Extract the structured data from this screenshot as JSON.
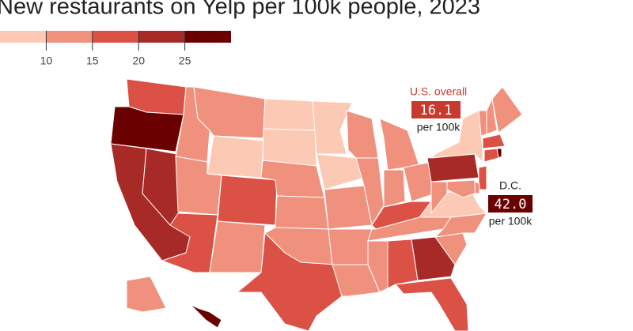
{
  "map": {
    "type": "choropleth",
    "title": "New restaurants on Yelp per 100k people, 2023",
    "legend": {
      "ticks": [
        10,
        15,
        20,
        25
      ],
      "colors": [
        "#fcc9b5",
        "#f0917e",
        "#dc5146",
        "#a82a27",
        "#6b0000"
      ]
    },
    "values": [
      17,
      27,
      22,
      22,
      13,
      13,
      8,
      13,
      17,
      17,
      13,
      8,
      8,
      13,
      13,
      13,
      17,
      8,
      8,
      13,
      13,
      13,
      13,
      13,
      13,
      13,
      13,
      17,
      13,
      13,
      17,
      22,
      17,
      13,
      13,
      8,
      13,
      22,
      8,
      13,
      13,
      17,
      17,
      27,
      17,
      13,
      13,
      13,
      27
    ],
    "annotations": [
      {
        "label": "U.S. overall",
        "value": 16.1,
        "unit": "per 100k"
      },
      {
        "label": "D.C.",
        "value": 42,
        "value_label": "42.0",
        "unit": "per 100k"
      }
    ]
  }
}
